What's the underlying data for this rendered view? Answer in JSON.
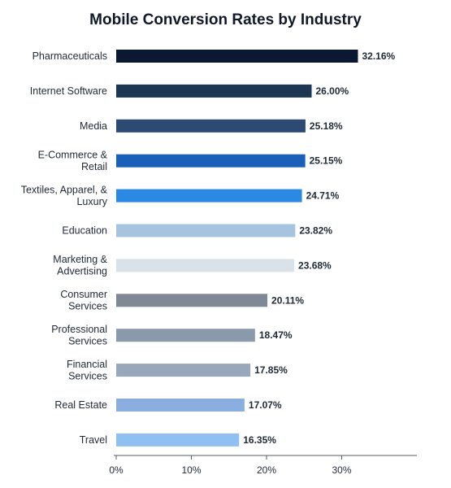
{
  "chart_data": {
    "type": "bar",
    "orientation": "horizontal",
    "title": "Mobile Conversion Rates by Industry",
    "xlabel": "",
    "ylabel": "",
    "xlim": [
      0,
      40
    ],
    "ticks": [
      0,
      10,
      20,
      30
    ],
    "tick_labels": [
      "0%",
      "10%",
      "20%",
      "30%"
    ],
    "grid": false,
    "categories": [
      [
        "Pharmaceuticals"
      ],
      [
        "Internet Software"
      ],
      [
        "Media"
      ],
      [
        "E-Commerce &",
        "Retail"
      ],
      [
        "Textiles, Apparel, &",
        "Luxury"
      ],
      [
        "Education"
      ],
      [
        "Marketing &",
        "Advertising"
      ],
      [
        "Consumer",
        "Services"
      ],
      [
        "Professional",
        "Services"
      ],
      [
        "Financial",
        "Services"
      ],
      [
        "Real Estate"
      ],
      [
        "Travel"
      ]
    ],
    "values": [
      32.16,
      26.0,
      25.18,
      25.15,
      24.71,
      23.82,
      23.68,
      20.11,
      18.47,
      17.85,
      17.07,
      16.35
    ],
    "value_labels": [
      "32.16%",
      "26.00%",
      "25.18%",
      "25.15%",
      "24.71%",
      "23.82%",
      "23.68%",
      "20.11%",
      "18.47%",
      "17.85%",
      "17.07%",
      "16.35%"
    ],
    "colors": [
      "#0c1833",
      "#1d3654",
      "#2c4a72",
      "#1a5fb8",
      "#2a8ae3",
      "#a6c4e0",
      "#d8e2e8",
      "#7f8996",
      "#8b9aab",
      "#98a7bb",
      "#8aaee0",
      "#8fc0f1"
    ]
  }
}
